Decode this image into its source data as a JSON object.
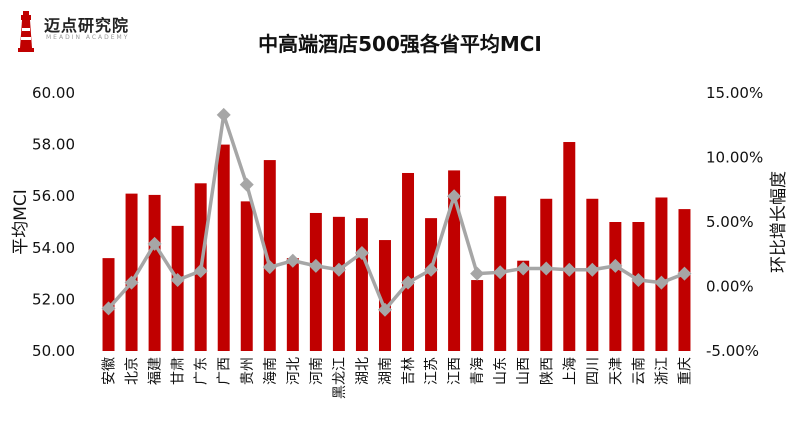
{
  "logo": {
    "text": "迈点研究院",
    "subtext": "MEADIN ACADEMY"
  },
  "chart_data": {
    "type": "bar",
    "title": "中高端酒店500强各省平均MCI",
    "ylabel": "平均MCI",
    "y2label": "环比增长幅度",
    "ylim": [
      50,
      60
    ],
    "y2lim": [
      -5,
      15
    ],
    "yticks": [
      "50.00",
      "52.00",
      "54.00",
      "56.00",
      "58.00",
      "60.00"
    ],
    "y2ticks": [
      "-5.00%",
      "0.00%",
      "5.00%",
      "10.00%",
      "15.00%"
    ],
    "categories": [
      "安徽",
      "北京",
      "福建",
      "甘肃",
      "广东",
      "广西",
      "贵州",
      "海南",
      "河北",
      "河南",
      "黑龙江",
      "湖北",
      "湖南",
      "吉林",
      "江苏",
      "江西",
      "青海",
      "山东",
      "山西",
      "陕西",
      "上海",
      "四川",
      "天津",
      "云南",
      "浙江",
      "重庆"
    ],
    "series": [
      {
        "type": "bar",
        "axis": "left",
        "color": "#C00000",
        "values": [
          53.6,
          56.1,
          56.05,
          54.85,
          56.5,
          58.0,
          55.8,
          57.4,
          53.6,
          55.35,
          55.2,
          55.15,
          54.3,
          56.9,
          55.15,
          57.0,
          52.75,
          56.0,
          53.5,
          55.9,
          58.1,
          55.9,
          55.0,
          55.0,
          55.95,
          55.5
        ]
      },
      {
        "type": "line",
        "axis": "right",
        "color": "#A6A6A6",
        "values": [
          -1.7,
          0.3,
          3.3,
          0.5,
          1.2,
          13.3,
          7.9,
          1.5,
          2.0,
          1.6,
          1.3,
          2.6,
          -1.8,
          0.3,
          1.3,
          7.0,
          1.0,
          1.1,
          1.4,
          1.4,
          1.3,
          1.3,
          1.6,
          0.5,
          0.3,
          1.0
        ]
      }
    ],
    "grid": false,
    "legend": "none"
  }
}
